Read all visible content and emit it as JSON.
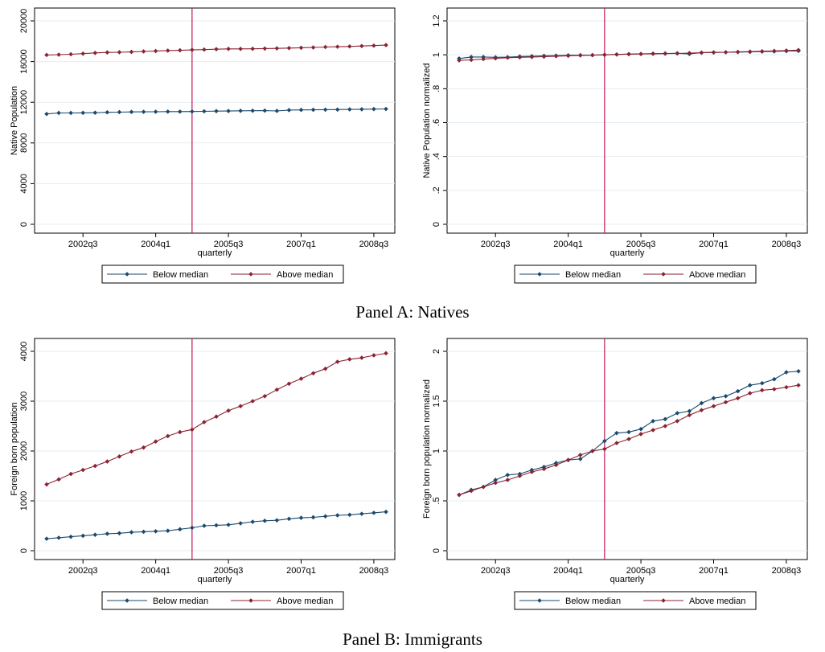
{
  "panels": [
    {
      "caption": "Panel A: Natives"
    },
    {
      "caption": "Panel B: Immigrants"
    }
  ],
  "colors": {
    "below": "#1a4a6e",
    "above": "#8b2332",
    "vline": "#c2185b",
    "grid": "#e6eef3"
  },
  "chart_data": [
    {
      "type": "line",
      "ylabel": "Native Population",
      "xlabel": "quarterly",
      "x": [
        "2001q4",
        "2002q1",
        "2002q2",
        "2002q3",
        "2002q4",
        "2003q1",
        "2003q2",
        "2003q3",
        "2003q4",
        "2004q1",
        "2004q2",
        "2004q3",
        "2004q4",
        "2005q1",
        "2005q2",
        "2005q3",
        "2005q4",
        "2006q1",
        "2006q2",
        "2006q3",
        "2006q4",
        "2007q1",
        "2007q2",
        "2007q3",
        "2007q4",
        "2008q1",
        "2008q2",
        "2008q3",
        "2008q4"
      ],
      "xticks": [
        "2002q3",
        "2004q1",
        "2005q3",
        "2007q1",
        "2008q3"
      ],
      "yticks": [
        "0",
        "4000",
        "8000",
        "12000",
        "16000",
        "20000"
      ],
      "ylim": [
        0,
        20000
      ],
      "vline": "2004q4",
      "series": [
        {
          "name": "Below median",
          "values": [
            10850,
            10950,
            10950,
            10960,
            10970,
            11010,
            11030,
            11050,
            11060,
            11070,
            11080,
            11080,
            11090,
            11110,
            11130,
            11140,
            11160,
            11170,
            11180,
            11150,
            11230,
            11250,
            11260,
            11270,
            11280,
            11300,
            11310,
            11330,
            11340
          ]
        },
        {
          "name": "Above median",
          "values": [
            16650,
            16680,
            16720,
            16780,
            16850,
            16900,
            16920,
            16950,
            17000,
            17040,
            17080,
            17110,
            17150,
            17180,
            17220,
            17250,
            17250,
            17260,
            17280,
            17300,
            17330,
            17360,
            17390,
            17430,
            17460,
            17490,
            17530,
            17570,
            17620
          ]
        }
      ]
    },
    {
      "type": "line",
      "ylabel": "Native Population normalized",
      "xlabel": "quarterly",
      "x": [
        "2001q4",
        "2002q1",
        "2002q2",
        "2002q3",
        "2002q4",
        "2003q1",
        "2003q2",
        "2003q3",
        "2003q4",
        "2004q1",
        "2004q2",
        "2004q3",
        "2004q4",
        "2005q1",
        "2005q2",
        "2005q3",
        "2005q4",
        "2006q1",
        "2006q2",
        "2006q3",
        "2006q4",
        "2007q1",
        "2007q2",
        "2007q3",
        "2007q4",
        "2008q1",
        "2008q2",
        "2008q3",
        "2008q4"
      ],
      "xticks": [
        "2002q3",
        "2004q1",
        "2005q3",
        "2007q1",
        "2008q3"
      ],
      "yticks": [
        "0",
        ".2",
        ".4",
        ".6",
        ".8",
        "1",
        "1.2"
      ],
      "ylim": [
        0,
        1.2
      ],
      "vline": "2004q4",
      "series": [
        {
          "name": "Below median",
          "values": [
            0.978,
            0.987,
            0.987,
            0.985,
            0.986,
            0.99,
            0.992,
            0.994,
            0.995,
            0.997,
            0.998,
            0.998,
            1.0,
            1.002,
            1.004,
            1.005,
            1.007,
            1.008,
            1.009,
            1.005,
            1.013,
            1.014,
            1.015,
            1.016,
            1.017,
            1.019,
            1.02,
            1.022,
            1.023
          ]
        },
        {
          "name": "Above median",
          "values": [
            0.967,
            0.97,
            0.975,
            0.979,
            0.983,
            0.985,
            0.987,
            0.989,
            0.992,
            0.994,
            0.996,
            0.998,
            1.0,
            1.002,
            1.004,
            1.005,
            1.006,
            1.007,
            1.008,
            1.01,
            1.012,
            1.014,
            1.015,
            1.017,
            1.019,
            1.021,
            1.023,
            1.025,
            1.028
          ]
        }
      ]
    },
    {
      "type": "line",
      "ylabel": "Foreign born population",
      "xlabel": "quarterly",
      "x": [
        "2001q4",
        "2002q1",
        "2002q2",
        "2002q3",
        "2002q4",
        "2003q1",
        "2003q2",
        "2003q3",
        "2003q4",
        "2004q1",
        "2004q2",
        "2004q3",
        "2004q4",
        "2005q1",
        "2005q2",
        "2005q3",
        "2005q4",
        "2006q1",
        "2006q2",
        "2006q3",
        "2006q4",
        "2007q1",
        "2007q2",
        "2007q3",
        "2007q4",
        "2008q1",
        "2008q2",
        "2008q3",
        "2008q4"
      ],
      "xticks": [
        "2002q3",
        "2004q1",
        "2005q3",
        "2007q1",
        "2008q3"
      ],
      "yticks": [
        "0",
        "1000",
        "2000",
        "3000",
        "4000"
      ],
      "ylim": [
        0,
        4000
      ],
      "vline": "2004q4",
      "series": [
        {
          "name": "Below median",
          "values": [
            240,
            260,
            280,
            300,
            320,
            340,
            350,
            370,
            380,
            390,
            400,
            430,
            460,
            500,
            510,
            520,
            550,
            580,
            600,
            610,
            640,
            660,
            670,
            690,
            710,
            720,
            740,
            760,
            780
          ]
        },
        {
          "name": "Above median",
          "values": [
            1330,
            1430,
            1540,
            1620,
            1700,
            1790,
            1890,
            1990,
            2070,
            2190,
            2300,
            2380,
            2430,
            2580,
            2690,
            2810,
            2900,
            3000,
            3100,
            3230,
            3350,
            3450,
            3560,
            3650,
            3790,
            3840,
            3870,
            3920,
            3960
          ]
        }
      ]
    },
    {
      "type": "line",
      "ylabel": "Foreign born population normalized",
      "xlabel": "quarterly",
      "x": [
        "2001q4",
        "2002q1",
        "2002q2",
        "2002q3",
        "2002q4",
        "2003q1",
        "2003q2",
        "2003q3",
        "2003q4",
        "2004q1",
        "2004q2",
        "2004q3",
        "2004q4",
        "2005q1",
        "2005q2",
        "2005q3",
        "2005q4",
        "2006q1",
        "2006q2",
        "2006q3",
        "2006q4",
        "2007q1",
        "2007q2",
        "2007q3",
        "2007q4",
        "2008q1",
        "2008q2",
        "2008q3",
        "2008q4"
      ],
      "xticks": [
        "2002q3",
        "2004q1",
        "2005q3",
        "2007q1",
        "2008q3"
      ],
      "yticks": [
        "0",
        ".5",
        "1",
        "1.5",
        "2"
      ],
      "ylim": [
        0,
        2
      ],
      "vline": "2004q4",
      "series": [
        {
          "name": "Below median",
          "values": [
            0.56,
            0.61,
            0.64,
            0.71,
            0.76,
            0.77,
            0.81,
            0.84,
            0.88,
            0.91,
            0.92,
            1.0,
            1.1,
            1.18,
            1.19,
            1.22,
            1.3,
            1.32,
            1.38,
            1.4,
            1.48,
            1.53,
            1.55,
            1.6,
            1.66,
            1.68,
            1.72,
            1.79,
            1.8
          ]
        },
        {
          "name": "Above median",
          "values": [
            0.56,
            0.6,
            0.64,
            0.68,
            0.71,
            0.75,
            0.79,
            0.82,
            0.86,
            0.91,
            0.96,
            1.0,
            1.02,
            1.08,
            1.12,
            1.17,
            1.21,
            1.25,
            1.3,
            1.36,
            1.41,
            1.45,
            1.49,
            1.53,
            1.58,
            1.61,
            1.62,
            1.64,
            1.66
          ]
        }
      ]
    }
  ]
}
